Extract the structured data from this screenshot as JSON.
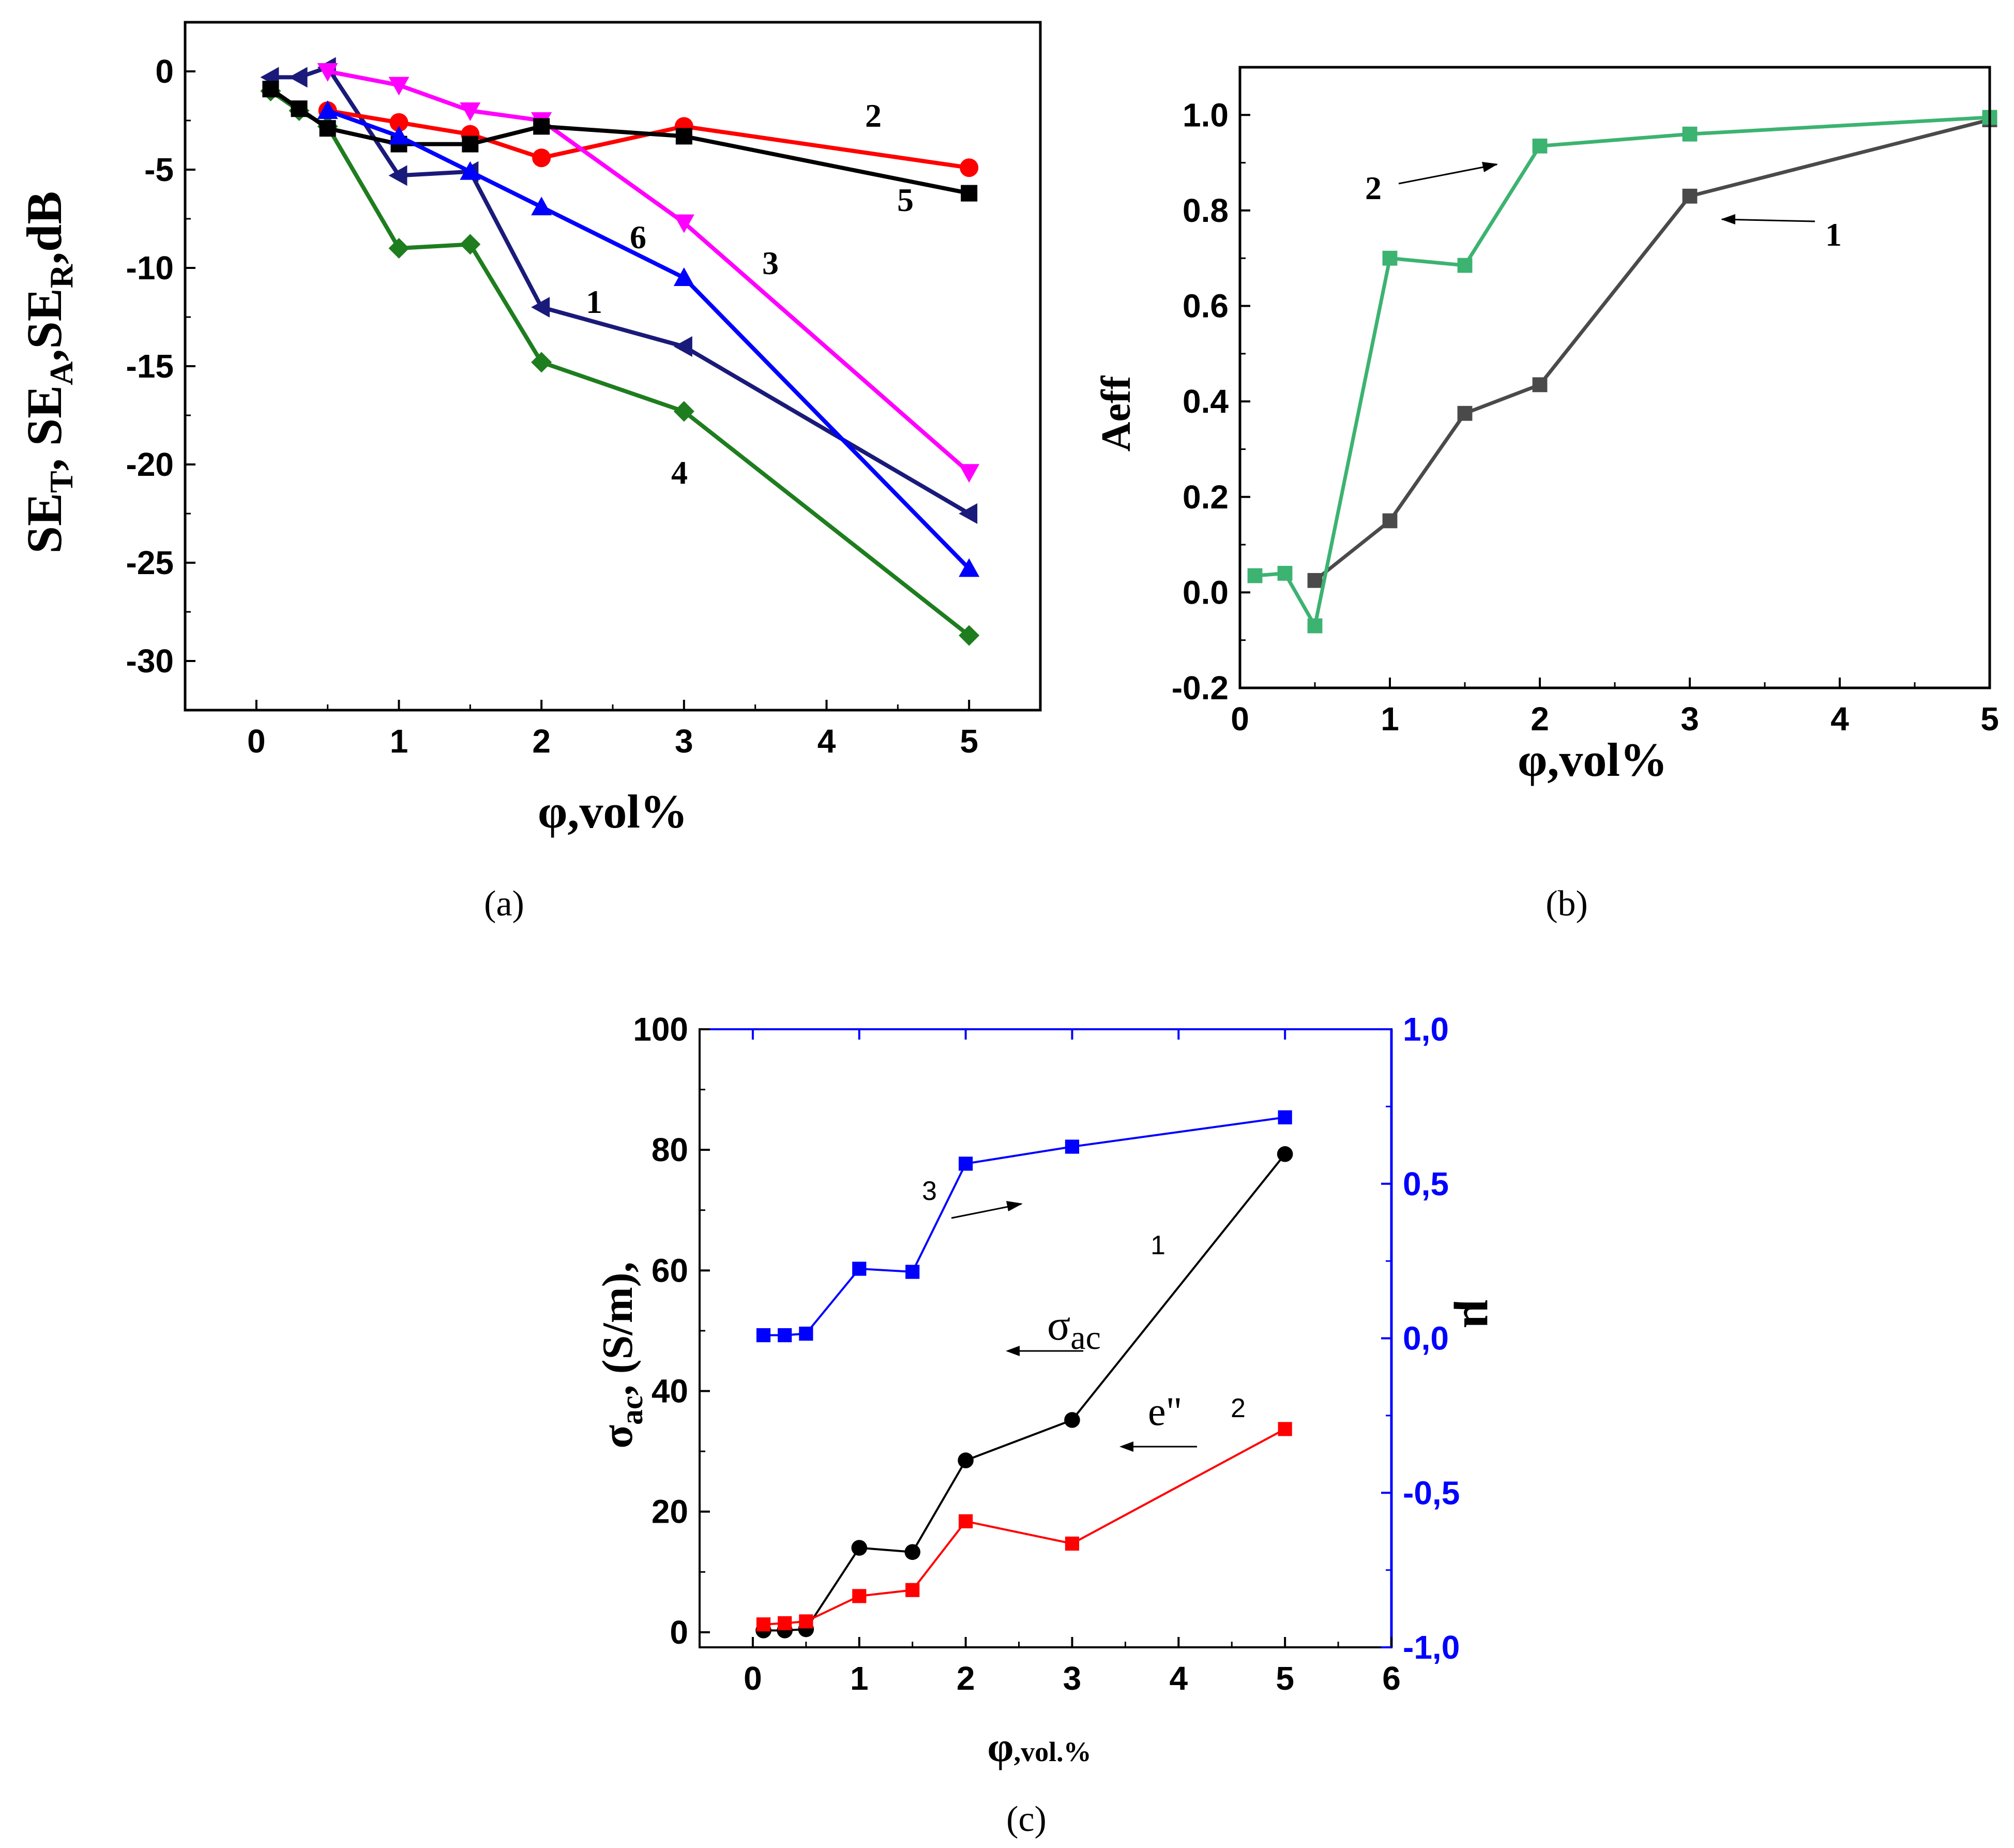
{
  "figure": {
    "captions": [
      "(a)",
      "(b)",
      "(c)"
    ]
  },
  "chart_data": [
    {
      "id": "a",
      "type": "line",
      "caption": "(a)",
      "xlabel": "φ,vol%",
      "ylabel_parts": [
        "SE",
        "T",
        ", SE",
        "A",
        ",SE",
        "R",
        ",dB"
      ],
      "xlim": [
        -0.5,
        5.5
      ],
      "ylim": [
        -32.5,
        2.5
      ],
      "xticks": [
        0,
        1,
        2,
        3,
        4,
        5
      ],
      "yticks": [
        0,
        -5,
        -10,
        -15,
        -20,
        -25,
        -30
      ],
      "grid": false,
      "series": [
        {
          "name": "1",
          "label": "1",
          "color": "#1a1a7a",
          "marker": "triangle-left",
          "x": [
            0.1,
            0.3,
            0.5,
            1,
            1.5,
            2,
            3,
            5
          ],
          "y": [
            -0.3,
            -0.3,
            0.2,
            -5.3,
            -5.1,
            -12.0,
            -14.0,
            -22.5
          ]
        },
        {
          "name": "2",
          "label": "2",
          "color": "#ff0000",
          "marker": "circle",
          "x": [
            0.5,
            1,
            1.5,
            2,
            3,
            5
          ],
          "y": [
            -2.0,
            -2.6,
            -3.2,
            -4.4,
            -2.8,
            -4.9
          ]
        },
        {
          "name": "3",
          "label": "3",
          "color": "#ff00ff",
          "marker": "triangle-down",
          "x": [
            0.5,
            1,
            1.5,
            2,
            3,
            5
          ],
          "y": [
            0.0,
            -0.7,
            -2.0,
            -2.5,
            -7.7,
            -20.4
          ]
        },
        {
          "name": "4",
          "label": "4",
          "color": "#1e7d1e",
          "marker": "diamond",
          "x": [
            0.1,
            0.3,
            0.5,
            1,
            1.5,
            2,
            3,
            5
          ],
          "y": [
            -1.0,
            -2.0,
            -2.8,
            -9.0,
            -8.8,
            -14.8,
            -17.3,
            -28.7
          ]
        },
        {
          "name": "5",
          "label": "5",
          "color": "#000000",
          "marker": "square",
          "x": [
            0.1,
            0.3,
            0.5,
            1,
            1.5,
            2,
            3,
            5
          ],
          "y": [
            -0.9,
            -1.9,
            -2.9,
            -3.7,
            -3.7,
            -2.8,
            -3.3,
            -6.2
          ]
        },
        {
          "name": "6",
          "label": "6",
          "color": "#0000ff",
          "marker": "triangle-up",
          "x": [
            0.5,
            1,
            1.5,
            2,
            3,
            5
          ],
          "y": [
            -2.0,
            -3.3,
            -5.1,
            -6.9,
            -10.5,
            -25.3
          ]
        }
      ]
    },
    {
      "id": "b",
      "type": "line",
      "caption": "(b)",
      "xlabel": "φ,vol%",
      "ylabel": "Aeff",
      "xlim": [
        0,
        5
      ],
      "ylim": [
        -0.2,
        1.1
      ],
      "xticks": [
        0,
        1,
        2,
        3,
        4,
        5
      ],
      "yticks": [
        -0.2,
        0.0,
        0.2,
        0.4,
        0.6,
        0.8,
        1.0
      ],
      "ytick_labels": [
        "-0.2",
        "0.0",
        "0.2",
        "0.4",
        "0.6",
        "0.8",
        "1.0"
      ],
      "grid": false,
      "series": [
        {
          "name": "1",
          "label": "1",
          "color": "#4a4a4a",
          "marker": "square",
          "x": [
            0.5,
            1,
            1.5,
            2,
            3,
            5
          ],
          "y": [
            0.025,
            0.15,
            0.375,
            0.435,
            0.83,
            0.99
          ]
        },
        {
          "name": "2",
          "label": "2",
          "color": "#3cb371",
          "marker": "square",
          "x": [
            0.1,
            0.3,
            0.5,
            1,
            1.5,
            2,
            3,
            5
          ],
          "y": [
            0.035,
            0.04,
            -0.07,
            0.7,
            0.685,
            0.935,
            0.96,
            0.995
          ]
        }
      ]
    },
    {
      "id": "c",
      "type": "line",
      "caption": "(c)",
      "xlabel": "φ",
      "xlabel_sub": ",vol.%",
      "ylabel_parts": [
        "σ",
        "ac",
        ", (S/m),"
      ],
      "y2label": "μ",
      "xlim": [
        -0.5,
        6
      ],
      "ylim": [
        -2.5,
        100
      ],
      "y2lim": [
        -1.0,
        1.0
      ],
      "xticks": [
        0,
        1,
        2,
        3,
        4,
        5,
        6
      ],
      "yticks": [
        0,
        20,
        40,
        60,
        80,
        100
      ],
      "y2ticks": [
        -1.0,
        -0.5,
        0.0,
        0.5,
        1.0
      ],
      "y2tick_labels": [
        "-1,0",
        "-0,5",
        "0,0",
        "0,5",
        "1,0"
      ],
      "grid": false,
      "annotations": {
        "sigma_main": "σ",
        "sigma_sub": "ac",
        "eps": "e\""
      },
      "series": [
        {
          "name": "1",
          "label": "1",
          "axis": "left",
          "color": "#000000",
          "marker": "circle",
          "x": [
            0.1,
            0.3,
            0.5,
            1,
            1.5,
            2,
            3,
            5
          ],
          "y": [
            0.3,
            0.3,
            0.5,
            14.0,
            13.3,
            28.5,
            35.2,
            79.3
          ]
        },
        {
          "name": "2",
          "label": "2",
          "axis": "left",
          "color": "#ff0000",
          "marker": "square",
          "x": [
            0.1,
            0.3,
            0.5,
            1,
            1.5,
            2,
            3,
            5
          ],
          "y": [
            1.3,
            1.5,
            1.8,
            6.0,
            7.0,
            18.4,
            14.7,
            33.7
          ]
        },
        {
          "name": "3",
          "label": "3",
          "axis": "right",
          "color": "#0000ff",
          "marker": "square",
          "x": [
            0.1,
            0.3,
            0.5,
            1,
            1.5,
            2,
            3,
            5
          ],
          "y": [
            0.01,
            0.01,
            0.015,
            0.225,
            0.215,
            0.565,
            0.62,
            0.715
          ]
        }
      ]
    }
  ]
}
